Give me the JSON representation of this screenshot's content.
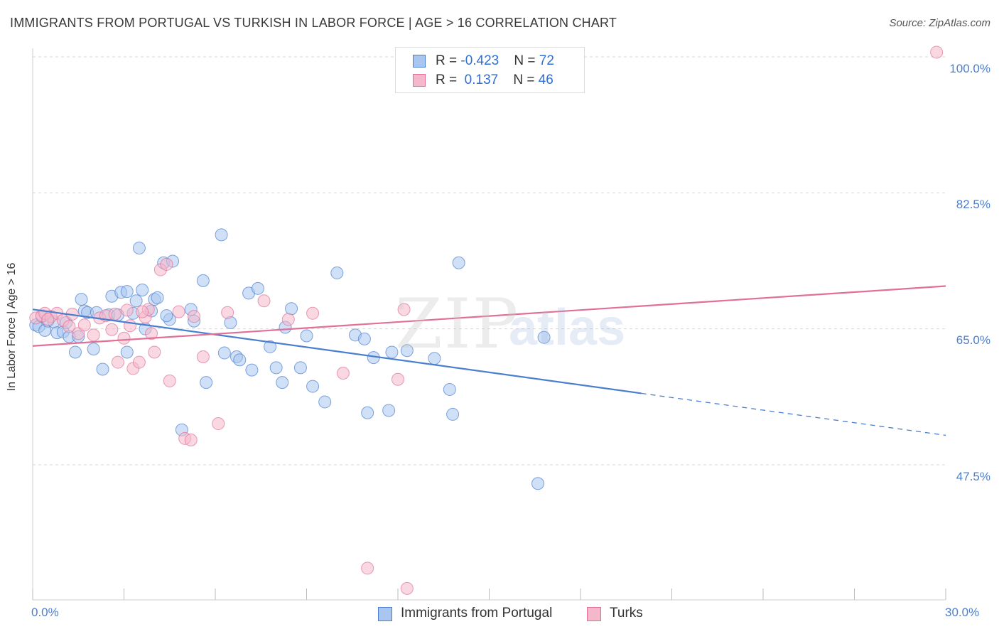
{
  "header": {
    "title": "IMMIGRANTS FROM PORTUGAL VS TURKISH IN LABOR FORCE | AGE > 16 CORRELATION CHART",
    "source": "Source: ZipAtlas.com"
  },
  "watermark": {
    "part1": "ZIP",
    "part2": "atlas"
  },
  "legend": {
    "rows": [
      {
        "r_label": "R = ",
        "r_value": "-0.423",
        "n_label": "N = ",
        "n_value": "72",
        "color": "#a9c6f0"
      },
      {
        "r_label": "R = ",
        "r_value": " 0.137",
        "n_label": "N = ",
        "n_value": "46",
        "color": "#f5b8cb"
      }
    ]
  },
  "bottom_legend": [
    {
      "label": "Immigrants from Portugal",
      "color": "#a9c6f0"
    },
    {
      "label": "Turks",
      "color": "#f5b8cb"
    }
  ],
  "axes": {
    "ylabel": "In Labor Force | Age > 16",
    "y_ticks": [
      "100.0%",
      "82.5%",
      "65.0%",
      "47.5%"
    ],
    "x_ticks": [
      "0.0%",
      "30.0%"
    ]
  },
  "chart_data": {
    "type": "scatter",
    "xlim": [
      0,
      30
    ],
    "ylim": [
      34,
      102
    ],
    "y_tick_values": [
      100,
      82.5,
      65,
      47.5
    ],
    "x_tick_values": [
      0,
      30
    ],
    "grid": "horizontal dashed",
    "series": [
      {
        "name": "Immigrants from Portugal",
        "color": "#4a7fd0",
        "fill": "#a9c6f0",
        "trend": {
          "x": [
            0,
            20,
            30
          ],
          "y": [
            67.5,
            56.7,
            51.3
          ],
          "dashed_after": 20
        },
        "points": [
          [
            0.1,
            65.5
          ],
          [
            0.2,
            65.3
          ],
          [
            0.4,
            64.8
          ],
          [
            0.5,
            66.0
          ],
          [
            0.7,
            65.9
          ],
          [
            0.8,
            64.5
          ],
          [
            1.0,
            64.6
          ],
          [
            1.2,
            64.0
          ],
          [
            1.4,
            62.0
          ],
          [
            1.6,
            68.8
          ],
          [
            1.7,
            67.3
          ],
          [
            1.8,
            67.1
          ],
          [
            2.0,
            62.4
          ],
          [
            2.3,
            59.8
          ],
          [
            2.5,
            66.8
          ],
          [
            2.6,
            69.2
          ],
          [
            2.8,
            66.8
          ],
          [
            2.9,
            69.7
          ],
          [
            3.1,
            69.8
          ],
          [
            3.1,
            62.0
          ],
          [
            3.3,
            67.0
          ],
          [
            3.5,
            75.4
          ],
          [
            3.6,
            70.0
          ],
          [
            3.7,
            65.0
          ],
          [
            3.9,
            67.3
          ],
          [
            4.0,
            68.8
          ],
          [
            4.1,
            69.0
          ],
          [
            4.3,
            73.5
          ],
          [
            4.5,
            66.2
          ],
          [
            4.6,
            73.7
          ],
          [
            4.9,
            52.0
          ],
          [
            5.2,
            67.5
          ],
          [
            5.6,
            71.2
          ],
          [
            5.7,
            58.1
          ],
          [
            6.2,
            77.1
          ],
          [
            6.3,
            61.9
          ],
          [
            6.5,
            65.8
          ],
          [
            6.7,
            61.4
          ],
          [
            6.8,
            61.0
          ],
          [
            7.1,
            69.6
          ],
          [
            7.2,
            59.7
          ],
          [
            7.4,
            70.2
          ],
          [
            7.8,
            62.7
          ],
          [
            8.0,
            60.0
          ],
          [
            8.2,
            58.1
          ],
          [
            8.3,
            65.2
          ],
          [
            8.5,
            67.6
          ],
          [
            8.8,
            60.0
          ],
          [
            9.0,
            64.1
          ],
          [
            9.2,
            57.6
          ],
          [
            9.6,
            55.6
          ],
          [
            10.0,
            72.2
          ],
          [
            10.6,
            64.2
          ],
          [
            10.9,
            63.7
          ],
          [
            11.0,
            54.2
          ],
          [
            11.2,
            61.3
          ],
          [
            11.7,
            54.5
          ],
          [
            11.8,
            62.0
          ],
          [
            12.3,
            62.2
          ],
          [
            13.2,
            61.2
          ],
          [
            13.7,
            57.2
          ],
          [
            14.0,
            73.5
          ],
          [
            13.8,
            54.0
          ],
          [
            16.6,
            45.1
          ],
          [
            16.8,
            63.9
          ],
          [
            1.1,
            65.8
          ],
          [
            2.1,
            67.1
          ],
          [
            3.4,
            68.6
          ],
          [
            4.4,
            66.7
          ],
          [
            5.3,
            66.0
          ],
          [
            0.3,
            66.6
          ],
          [
            1.5,
            64.0
          ]
        ]
      },
      {
        "name": "Turks",
        "color": "#e07098",
        "fill": "#f5b8cb",
        "trend": {
          "x": [
            0,
            30
          ],
          "y": [
            62.8,
            70.5
          ]
        },
        "points": [
          [
            0.1,
            66.4
          ],
          [
            0.3,
            66.7
          ],
          [
            0.4,
            67.0
          ],
          [
            0.6,
            66.6
          ],
          [
            0.8,
            67.0
          ],
          [
            1.0,
            66.1
          ],
          [
            1.2,
            65.3
          ],
          [
            1.3,
            66.9
          ],
          [
            1.5,
            64.4
          ],
          [
            1.7,
            65.5
          ],
          [
            2.0,
            64.2
          ],
          [
            2.2,
            66.4
          ],
          [
            2.4,
            66.7
          ],
          [
            2.6,
            64.9
          ],
          [
            2.8,
            60.7
          ],
          [
            3.0,
            63.8
          ],
          [
            3.1,
            67.4
          ],
          [
            3.2,
            65.4
          ],
          [
            3.3,
            59.9
          ],
          [
            3.5,
            60.7
          ],
          [
            3.7,
            66.5
          ],
          [
            3.8,
            67.5
          ],
          [
            3.9,
            64.4
          ],
          [
            4.0,
            62.0
          ],
          [
            4.2,
            72.6
          ],
          [
            4.4,
            73.3
          ],
          [
            4.5,
            58.3
          ],
          [
            4.8,
            67.2
          ],
          [
            5.0,
            50.9
          ],
          [
            5.2,
            50.7
          ],
          [
            5.3,
            66.6
          ],
          [
            5.6,
            61.4
          ],
          [
            6.1,
            52.8
          ],
          [
            6.4,
            67.1
          ],
          [
            7.6,
            68.6
          ],
          [
            8.4,
            66.2
          ],
          [
            9.2,
            67.0
          ],
          [
            10.2,
            59.3
          ],
          [
            11.0,
            34.2
          ],
          [
            12.0,
            58.5
          ],
          [
            12.2,
            67.5
          ],
          [
            12.3,
            31.6
          ],
          [
            29.7,
            100.6
          ],
          [
            0.5,
            66.2
          ],
          [
            2.7,
            66.9
          ],
          [
            3.6,
            67.2
          ]
        ]
      }
    ]
  }
}
